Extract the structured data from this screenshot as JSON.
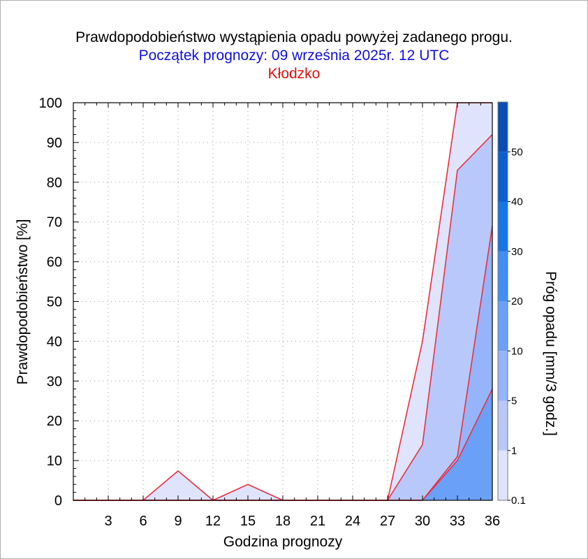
{
  "header": {
    "title": "Prawdopodobieństwo wystąpienia opadu powyżej zadanego progu.",
    "subtitle": "Początek prognozy: 09 września 2025r. 12 UTC",
    "station": "Kłodzko"
  },
  "chart_data": {
    "type": "area",
    "title": "Prawdopodobieństwo wystąpienia opadu powyżej zadanego progu.",
    "subtitle": "Początek prognozy: 09 września 2025r. 12 UTC",
    "location": "Kłodzko",
    "xlabel": "Godzina prognozy",
    "ylabel": "Prawdopodobieństwo [%]",
    "xlim": [
      0,
      36
    ],
    "ylim": [
      0,
      100
    ],
    "x_ticks": [
      3,
      6,
      9,
      12,
      15,
      18,
      21,
      24,
      27,
      30,
      33,
      36
    ],
    "y_ticks": [
      0,
      10,
      20,
      30,
      40,
      50,
      60,
      70,
      80,
      90,
      100
    ],
    "x": [
      0,
      3,
      6,
      9,
      12,
      15,
      18,
      21,
      24,
      27,
      30,
      33,
      36
    ],
    "series": [
      {
        "threshold": 0.1,
        "color": "#dfe3fb",
        "values": [
          0,
          0,
          0,
          7.4,
          0,
          4.0,
          0,
          0,
          0,
          0,
          40,
          100,
          100
        ]
      },
      {
        "threshold": 1,
        "color": "#b8c8fb",
        "values": [
          0,
          0,
          0,
          0,
          0,
          0,
          0,
          0,
          0,
          0,
          14,
          83,
          92
        ]
      },
      {
        "threshold": 5,
        "color": "#95b4fb",
        "values": [
          0,
          0,
          0,
          0,
          0,
          0,
          0,
          0,
          0,
          0,
          0,
          11,
          69
        ]
      },
      {
        "threshold": 10,
        "color": "#6aa0f8",
        "values": [
          0,
          0,
          0,
          0,
          0,
          0,
          0,
          0,
          0,
          0,
          0,
          10,
          28
        ]
      }
    ],
    "colorbar": {
      "label": "Próg opadu [mm/3 godz.]",
      "tick_labels": [
        "0.1",
        "1",
        "5",
        "10",
        "20",
        "30",
        "40",
        "50"
      ],
      "bands": [
        {
          "from": 0.1,
          "to": 1,
          "color": "#dfe3fb"
        },
        {
          "from": 1,
          "to": 5,
          "color": "#b8c8fb"
        },
        {
          "from": 5,
          "to": 10,
          "color": "#95b4fb"
        },
        {
          "from": 10,
          "to": 20,
          "color": "#6aa0f8"
        },
        {
          "from": 20,
          "to": 30,
          "color": "#3f8ef4"
        },
        {
          "from": 30,
          "to": 40,
          "color": "#1475e6"
        },
        {
          "from": 40,
          "to": 50,
          "color": "#0a5fcf"
        },
        {
          "from": 50,
          "to": 60,
          "color": "#0a4db5"
        }
      ]
    },
    "outline_color": "#e83040",
    "grid": "dotted",
    "legend": "colorbar-right"
  }
}
